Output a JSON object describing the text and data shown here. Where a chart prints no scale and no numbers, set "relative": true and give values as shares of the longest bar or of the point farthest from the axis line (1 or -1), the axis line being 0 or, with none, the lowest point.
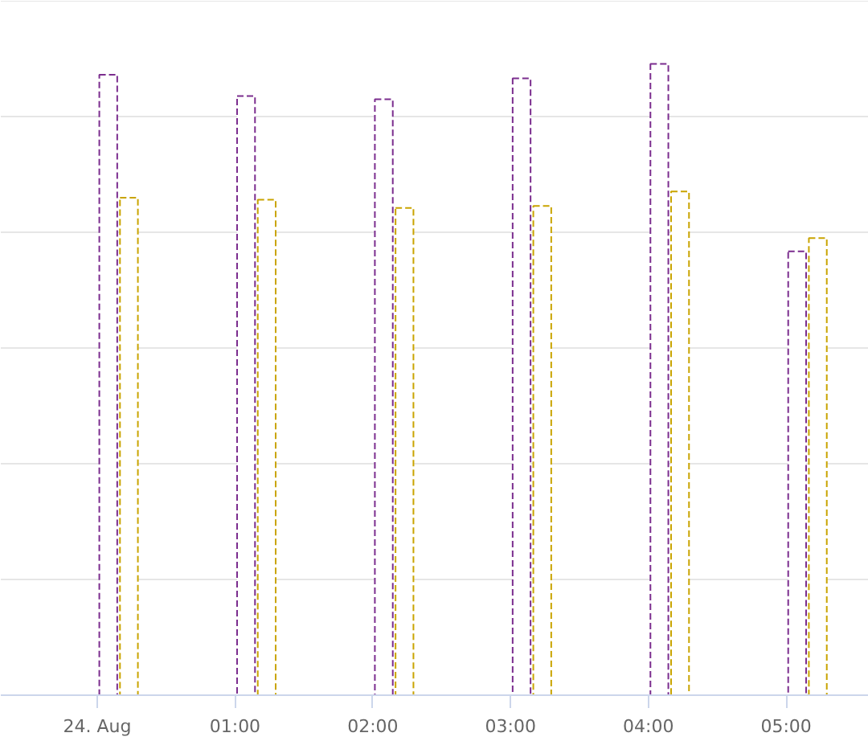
{
  "chart_data": {
    "type": "bar",
    "relative": true,
    "line_style": "dashed",
    "grid": "y",
    "xlim": [
      -0.7,
      5.6
    ],
    "xticks": [
      {
        "value": 0,
        "label": "24. Aug"
      },
      {
        "value": 1,
        "label": "01:00"
      },
      {
        "value": 2,
        "label": "02:00"
      },
      {
        "value": 3,
        "label": "03:00"
      },
      {
        "value": 4,
        "label": "04:00"
      },
      {
        "value": 5,
        "label": "05:00"
      }
    ],
    "series": [
      {
        "color": "#7b2d8e",
        "x": [
          0.08,
          1.08,
          2.08,
          3.08,
          4.08,
          5.08
        ],
        "values": [
          0.983,
          0.949,
          0.944,
          0.977,
          1.0,
          0.703
        ]
      },
      {
        "color": "#c9a400",
        "x": [
          0.23,
          1.23,
          2.23,
          3.23,
          4.23,
          5.23
        ],
        "values": [
          0.788,
          0.785,
          0.772,
          0.775,
          0.798,
          0.724
        ]
      }
    ]
  }
}
